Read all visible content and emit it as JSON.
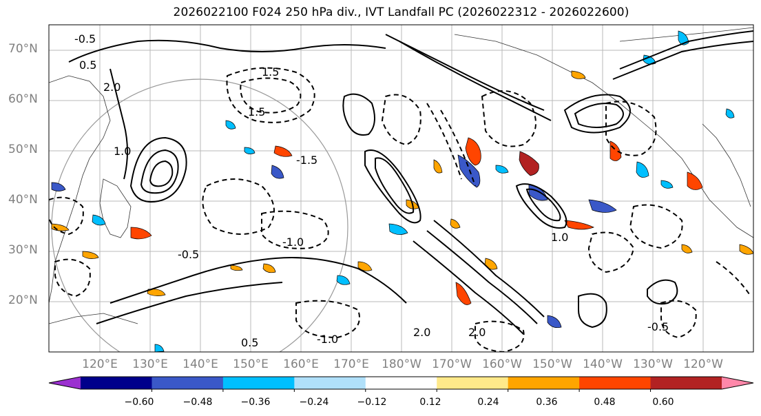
{
  "title": "2026022100 F024 250 hPa div., IVT Landfall PC (2026022312 - 2026022600)",
  "lat_labels": [
    "70°N",
    "60°N",
    "50°N",
    "40°N",
    "30°N",
    "20°N"
  ],
  "lon_labels": [
    "120°E",
    "130°E",
    "140°E",
    "150°E",
    "160°E",
    "170°E",
    "180°W",
    "170°W",
    "160°W",
    "150°W",
    "140°W",
    "130°W",
    "120°W"
  ],
  "colorbar": {
    "ticks": [
      "−0.60",
      "−0.48",
      "−0.36",
      "−0.24",
      "−0.12",
      "0.12",
      "0.24",
      "0.36",
      "0.48",
      "0.60"
    ],
    "colors": [
      "#9b30d0",
      "#00008b",
      "#3a58c8",
      "#00bfff",
      "#b0e0fa",
      "#ffffff",
      "#ffe98a",
      "#ffa500",
      "#ff4500",
      "#b22222",
      "#ff88aa"
    ]
  },
  "contour_labels": [
    "-0.5",
    "0.5",
    "2.0",
    "1.5",
    "-1.5",
    "-1.0",
    "1.0",
    "-0.5",
    "2.0",
    "1.5",
    "-1.0",
    "0.5",
    "-0.5",
    "2.0",
    "1.0"
  ]
}
